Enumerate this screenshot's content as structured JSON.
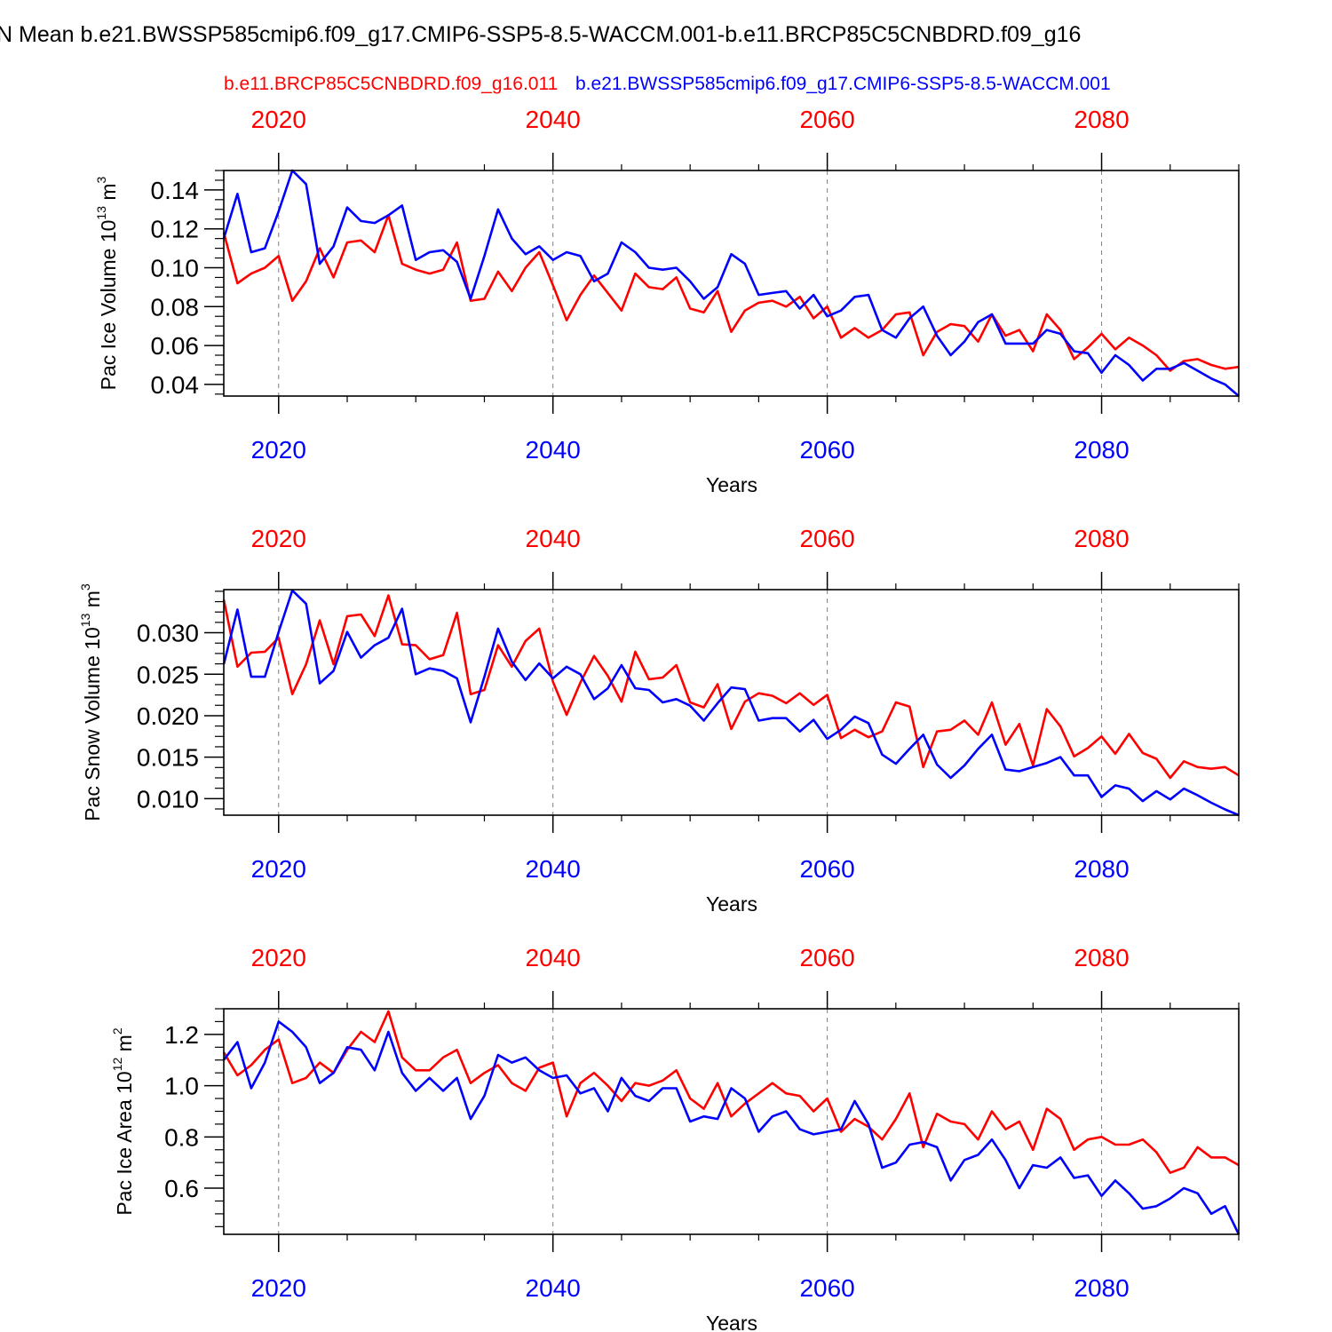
{
  "colors": {
    "red": "#ff0000",
    "blue": "#0000ff",
    "axis": "#000000",
    "grid": "#7f7f7f"
  },
  "header": {
    "title": "N Mean b.e21.BWSSP585cmip6.f09_g17.CMIP6-SSP5-8.5-WACCM.001-b.e11.BRCP85C5CNBDRD.f09_g16",
    "legend_red": "b.e11.BRCP85C5CNBDRD.f09_g16.011",
    "legend_blue": "b.e21.BWSSP585cmip6.f09_g17.CMIP6-SSP5-8.5-WACCM.001"
  },
  "chart_data": [
    {
      "type": "line",
      "title": "",
      "xlabel": "Years",
      "ylabel": "Pac Ice Volume 10^13 m^3",
      "ylabel_base": "Pac Ice Volume 10",
      "ylabel_exp": "13",
      "ylabel_unit": " m",
      "ylabel_unit_exp": "3",
      "xlim": [
        2016,
        2090
      ],
      "ylim": [
        0.034,
        0.15
      ],
      "yticks": [
        0.04,
        0.06,
        0.08,
        0.1,
        0.12,
        0.14
      ],
      "ytick_labels": [
        "0.04",
        "0.06",
        "0.08",
        "0.10",
        "0.12",
        "0.14"
      ],
      "xticks_top": [
        2020,
        2040,
        2060,
        2080
      ],
      "xticks_top_labels": [
        "2020",
        "2040",
        "2060",
        "2080"
      ],
      "xticks_bottom": [
        2020,
        2040,
        2060,
        2080
      ],
      "xticks_bottom_labels": [
        "2020",
        "2040",
        "2060",
        "2080"
      ],
      "series": [
        {
          "name": "b.e11.BRCP85C5CNBDRD.f09_g16.011",
          "color": "red",
          "x0": 2016,
          "values": [
            0.118,
            0.092,
            0.097,
            0.1,
            0.106,
            0.083,
            0.093,
            0.11,
            0.095,
            0.113,
            0.114,
            0.108,
            0.127,
            0.102,
            0.099,
            0.097,
            0.099,
            0.113,
            0.083,
            0.084,
            0.098,
            0.088,
            0.1,
            0.108,
            0.091,
            0.073,
            0.086,
            0.096,
            0.087,
            0.078,
            0.097,
            0.09,
            0.089,
            0.095,
            0.079,
            0.077,
            0.088,
            0.067,
            0.078,
            0.082,
            0.083,
            0.08,
            0.085,
            0.074,
            0.08,
            0.064,
            0.069,
            0.064,
            0.068,
            0.076,
            0.077,
            0.055,
            0.067,
            0.071,
            0.07,
            0.062,
            0.076,
            0.065,
            0.068,
            0.057,
            0.076,
            0.068,
            0.053,
            0.059,
            0.066,
            0.058,
            0.064,
            0.06,
            0.055,
            0.047,
            0.052,
            0.053,
            0.05,
            0.048,
            0.049
          ]
        },
        {
          "name": "b.e21.BWSSP585cmip6.f09_g17.CMIP6-SSP5-8.5-WACCM.001",
          "color": "blue",
          "x0": 2016,
          "values": [
            0.115,
            0.138,
            0.108,
            0.11,
            0.129,
            0.15,
            0.143,
            0.102,
            0.111,
            0.131,
            0.124,
            0.123,
            0.127,
            0.132,
            0.104,
            0.108,
            0.109,
            0.103,
            0.084,
            0.106,
            0.13,
            0.115,
            0.107,
            0.111,
            0.104,
            0.108,
            0.106,
            0.093,
            0.097,
            0.113,
            0.108,
            0.1,
            0.099,
            0.1,
            0.093,
            0.084,
            0.09,
            0.107,
            0.102,
            0.086,
            0.087,
            0.088,
            0.079,
            0.086,
            0.075,
            0.078,
            0.085,
            0.086,
            0.068,
            0.064,
            0.074,
            0.08,
            0.065,
            0.055,
            0.062,
            0.072,
            0.076,
            0.061,
            0.061,
            0.061,
            0.068,
            0.066,
            0.057,
            0.056,
            0.046,
            0.055,
            0.05,
            0.042,
            0.048,
            0.048,
            0.051,
            0.047,
            0.043,
            0.04,
            0.034
          ]
        }
      ]
    },
    {
      "type": "line",
      "title": "",
      "xlabel": "Years",
      "ylabel": "Pac Snow Volume 10^13 m^3",
      "ylabel_base": "Pac Snow Volume 10",
      "ylabel_exp": "13",
      "ylabel_unit": " m",
      "ylabel_unit_exp": "3",
      "xlim": [
        2016,
        2090
      ],
      "ylim": [
        0.008,
        0.0352
      ],
      "yticks": [
        0.01,
        0.015,
        0.02,
        0.025,
        0.03
      ],
      "ytick_labels": [
        "0.010",
        "0.015",
        "0.020",
        "0.025",
        "0.030"
      ],
      "xticks_top": [
        2020,
        2040,
        2060,
        2080
      ],
      "xticks_top_labels": [
        "2020",
        "2040",
        "2060",
        "2080"
      ],
      "xticks_bottom": [
        2020,
        2040,
        2060,
        2080
      ],
      "xticks_bottom_labels": [
        "2020",
        "2040",
        "2060",
        "2080"
      ],
      "series": [
        {
          "name": "b.e11.BRCP85C5CNBDRD.f09_g16.011",
          "color": "red",
          "x0": 2016,
          "values": [
            0.034,
            0.0259,
            0.0276,
            0.0277,
            0.0294,
            0.0226,
            0.0262,
            0.0315,
            0.0262,
            0.032,
            0.0322,
            0.0296,
            0.0345,
            0.0286,
            0.0285,
            0.0268,
            0.0273,
            0.0324,
            0.0226,
            0.0231,
            0.0285,
            0.0259,
            0.029,
            0.0305,
            0.0241,
            0.0201,
            0.024,
            0.0272,
            0.0248,
            0.0217,
            0.0277,
            0.0244,
            0.0246,
            0.0261,
            0.0216,
            0.021,
            0.0238,
            0.0184,
            0.0217,
            0.0227,
            0.0224,
            0.0215,
            0.0227,
            0.0213,
            0.0225,
            0.0173,
            0.0183,
            0.0174,
            0.0181,
            0.0216,
            0.0211,
            0.0138,
            0.0181,
            0.0183,
            0.0194,
            0.0177,
            0.0216,
            0.0165,
            0.019,
            0.014,
            0.0208,
            0.0187,
            0.0151,
            0.0161,
            0.0175,
            0.0154,
            0.0178,
            0.0155,
            0.0148,
            0.0125,
            0.0145,
            0.0138,
            0.0136,
            0.0138,
            0.0128
          ]
        },
        {
          "name": "b.e21.BWSSP585cmip6.f09_g17.CMIP6-SSP5-8.5-WACCM.001",
          "color": "blue",
          "x0": 2016,
          "values": [
            0.0262,
            0.0328,
            0.0247,
            0.0247,
            0.0301,
            0.0351,
            0.0335,
            0.0239,
            0.0254,
            0.0301,
            0.027,
            0.0285,
            0.0294,
            0.0329,
            0.025,
            0.0257,
            0.0254,
            0.0245,
            0.0192,
            0.0247,
            0.0305,
            0.0265,
            0.0243,
            0.0263,
            0.0245,
            0.0259,
            0.025,
            0.022,
            0.0233,
            0.0261,
            0.0233,
            0.0231,
            0.0216,
            0.022,
            0.0212,
            0.0194,
            0.0215,
            0.0234,
            0.0232,
            0.0194,
            0.0197,
            0.0197,
            0.0181,
            0.0195,
            0.0172,
            0.0183,
            0.0199,
            0.0191,
            0.0153,
            0.0142,
            0.016,
            0.0177,
            0.0141,
            0.0125,
            0.014,
            0.016,
            0.0177,
            0.0135,
            0.0133,
            0.0138,
            0.0143,
            0.015,
            0.0128,
            0.0128,
            0.0102,
            0.0116,
            0.0112,
            0.0097,
            0.0109,
            0.0099,
            0.0112,
            0.0104,
            0.0095,
            0.0087,
            0.008
          ]
        }
      ]
    },
    {
      "type": "line",
      "title": "",
      "xlabel": "Years",
      "ylabel": "Pac Ice Area 10^12 m^2",
      "ylabel_base": "Pac Ice Area 10",
      "ylabel_exp": "12",
      "ylabel_unit": " m",
      "ylabel_unit_exp": "2",
      "xlim": [
        2016,
        2090
      ],
      "ylim": [
        0.42,
        1.3
      ],
      "yticks": [
        0.6,
        0.8,
        1.0,
        1.2
      ],
      "ytick_labels": [
        "0.6",
        "0.8",
        "1.0",
        "1.2"
      ],
      "xticks_top": [
        2020,
        2040,
        2060,
        2080
      ],
      "xticks_top_labels": [
        "2020",
        "2040",
        "2060",
        "2080"
      ],
      "xticks_bottom": [
        2020,
        2040,
        2060,
        2080
      ],
      "xticks_bottom_labels": [
        "2020",
        "2040",
        "2060",
        "2080"
      ],
      "series": [
        {
          "name": "b.e11.BRCP85C5CNBDRD.f09_g16.011",
          "color": "red",
          "x0": 2016,
          "values": [
            1.13,
            1.04,
            1.08,
            1.14,
            1.18,
            1.01,
            1.03,
            1.09,
            1.05,
            1.14,
            1.21,
            1.17,
            1.29,
            1.11,
            1.06,
            1.06,
            1.11,
            1.14,
            1.01,
            1.05,
            1.08,
            1.01,
            0.98,
            1.07,
            1.09,
            0.88,
            1.01,
            1.05,
            1.0,
            0.94,
            1.01,
            1.0,
            1.02,
            1.06,
            0.95,
            0.91,
            1.01,
            0.88,
            0.93,
            0.97,
            1.01,
            0.97,
            0.96,
            0.9,
            0.95,
            0.82,
            0.87,
            0.84,
            0.79,
            0.87,
            0.97,
            0.76,
            0.89,
            0.86,
            0.85,
            0.79,
            0.9,
            0.83,
            0.86,
            0.75,
            0.91,
            0.87,
            0.75,
            0.79,
            0.8,
            0.77,
            0.77,
            0.79,
            0.74,
            0.66,
            0.68,
            0.76,
            0.72,
            0.72,
            0.69
          ]
        },
        {
          "name": "b.e21.BWSSP585cmip6.f09_g17.CMIP6-SSP5-8.5-WACCM.001",
          "color": "blue",
          "x0": 2016,
          "values": [
            1.1,
            1.17,
            0.99,
            1.09,
            1.25,
            1.21,
            1.15,
            1.01,
            1.05,
            1.15,
            1.14,
            1.06,
            1.21,
            1.05,
            0.98,
            1.03,
            0.98,
            1.03,
            0.87,
            0.96,
            1.12,
            1.09,
            1.11,
            1.06,
            1.03,
            1.04,
            0.97,
            0.99,
            0.9,
            1.03,
            0.96,
            0.94,
            0.99,
            0.99,
            0.86,
            0.88,
            0.87,
            0.99,
            0.95,
            0.82,
            0.88,
            0.9,
            0.83,
            0.81,
            0.82,
            0.83,
            0.94,
            0.85,
            0.68,
            0.7,
            0.77,
            0.78,
            0.76,
            0.63,
            0.71,
            0.73,
            0.79,
            0.71,
            0.6,
            0.69,
            0.68,
            0.72,
            0.64,
            0.65,
            0.57,
            0.63,
            0.58,
            0.52,
            0.53,
            0.56,
            0.6,
            0.58,
            0.5,
            0.53,
            0.42
          ]
        }
      ]
    }
  ]
}
